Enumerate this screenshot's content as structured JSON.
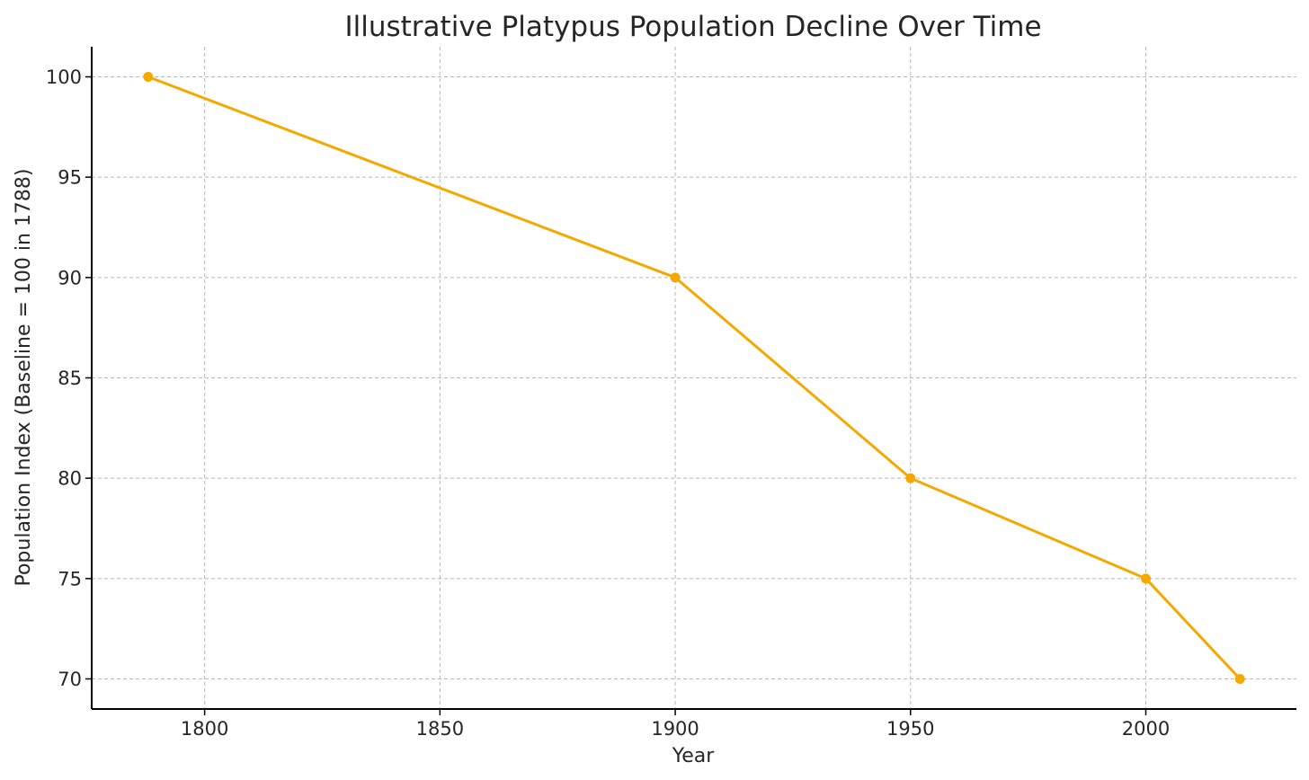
{
  "chart_data": {
    "type": "line",
    "title": "Illustrative Platypus Population Decline Over Time",
    "xlabel": "Year",
    "ylabel": "Population Index (Baseline = 100 in 1788)",
    "x": [
      1788,
      1900,
      1950,
      2000,
      2020
    ],
    "series": [
      {
        "values": [
          100,
          90,
          80,
          75,
          70
        ],
        "color": "#F5A800"
      }
    ],
    "xlim": [
      1776,
      2032
    ],
    "ylim": [
      68.5,
      101.5
    ],
    "xticks": [
      1800,
      1850,
      1900,
      1950,
      2000
    ],
    "xtick_labels": [
      "1800",
      "1850",
      "1900",
      "1950",
      "2000"
    ],
    "yticks": [
      70,
      75,
      80,
      85,
      90,
      95,
      100
    ],
    "ytick_labels": [
      "70",
      "75",
      "80",
      "85",
      "90",
      "95",
      "100"
    ],
    "grid": true,
    "grid_style": "dashed",
    "markers": true
  }
}
